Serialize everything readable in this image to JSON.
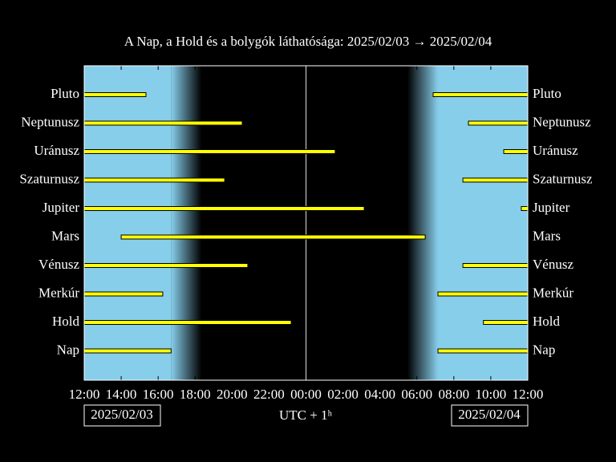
{
  "chart_data": {
    "type": "timeline",
    "title": "A Nap, a Hold és a bolygók láthatósága: 2025/02/03 → 2025/02/04",
    "xlabel": "UTC + 1ʰ",
    "date_labels": [
      "2025/02/03",
      "2025/02/04"
    ],
    "xlim": [
      12,
      36
    ],
    "xticks": [
      {
        "value": 12,
        "label": "12:00"
      },
      {
        "value": 14,
        "label": "14:00"
      },
      {
        "value": 16,
        "label": "16:00"
      },
      {
        "value": 18,
        "label": "18:00"
      },
      {
        "value": 20,
        "label": "20:00"
      },
      {
        "value": 22,
        "label": "22:00"
      },
      {
        "value": 24,
        "label": "00:00"
      },
      {
        "value": 26,
        "label": "02:00"
      },
      {
        "value": 28,
        "label": "04:00"
      },
      {
        "value": 30,
        "label": "06:00"
      },
      {
        "value": 32,
        "label": "08:00"
      },
      {
        "value": 34,
        "label": "10:00"
      },
      {
        "value": 36,
        "label": "12:00"
      }
    ],
    "color": "#ffff00",
    "series": [
      {
        "name": "Pluto",
        "intervals": [
          [
            12,
            15.34
          ],
          [
            30.88,
            36
          ]
        ]
      },
      {
        "name": "Neptunusz",
        "intervals": [
          [
            12,
            20.55
          ],
          [
            32.79,
            36
          ]
        ]
      },
      {
        "name": "Uránusz",
        "intervals": [
          [
            12,
            25.58
          ],
          [
            34.7,
            36
          ]
        ]
      },
      {
        "name": "Szaturnusz",
        "intervals": [
          [
            12,
            19.6
          ],
          [
            32.49,
            36
          ]
        ]
      },
      {
        "name": "Jupiter",
        "intervals": [
          [
            12,
            27.15
          ],
          [
            35.65,
            36
          ]
        ]
      },
      {
        "name": "Mars",
        "intervals": [
          [
            14,
            30.45
          ]
        ]
      },
      {
        "name": "Vénusz",
        "intervals": [
          [
            12,
            20.85
          ],
          [
            32.49,
            36
          ]
        ]
      },
      {
        "name": "Merkúr",
        "intervals": [
          [
            12,
            16.25
          ],
          [
            31.14,
            36
          ]
        ]
      },
      {
        "name": "Hold",
        "intervals": [
          [
            12,
            23.2
          ],
          [
            33.6,
            36
          ]
        ]
      },
      {
        "name": "Nap",
        "intervals": [
          [
            12,
            16.7
          ],
          [
            31.14,
            36
          ]
        ]
      }
    ]
  }
}
